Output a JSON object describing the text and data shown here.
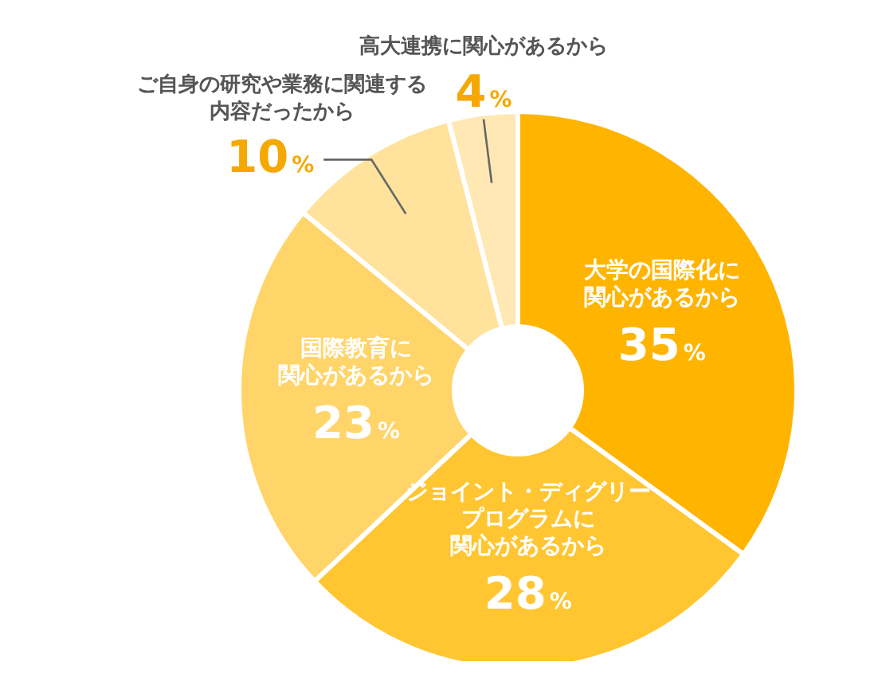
{
  "chart_data": {
    "type": "donut",
    "categories": [
      "大学の国際化に関心があるから",
      "ジョイント・ディグリープログラムに関心があるから",
      "国際教育に関心があるから",
      "ご自身の研究や業務に関連する内容だったから",
      "高大連携に関心があるから"
    ],
    "values": [
      35,
      28,
      23,
      10,
      4
    ],
    "colors": [
      "#ffb400",
      "#ffc632",
      "#ffd469",
      "#ffe29c",
      "#ffe8b4"
    ],
    "value_labels": [
      "35%",
      "28%",
      "23%",
      "10%",
      "4%"
    ],
    "legend": false
  }
}
